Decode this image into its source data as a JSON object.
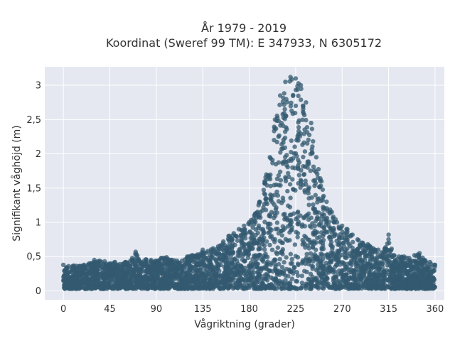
{
  "chart_data": {
    "type": "scatter",
    "title": [
      "År 1979 - 2019",
      "Koordinat (Sweref 99 TM): E 347933, N 6305172"
    ],
    "xlabel": "Vågriktning (grader)",
    "ylabel": "Signifikant våghöjd (m)",
    "xlim": [
      -18,
      369
    ],
    "ylim": [
      -0.13,
      3.27
    ],
    "xticks": [
      0,
      45,
      90,
      135,
      180,
      225,
      270,
      315,
      360
    ],
    "xtick_labels": [
      "0",
      "45",
      "90",
      "135",
      "180",
      "225",
      "270",
      "315",
      "360"
    ],
    "yticks": [
      0,
      0.5,
      1,
      1.5,
      2,
      2.5,
      3
    ],
    "ytick_labels": [
      "0",
      "0,5",
      "1",
      "1,5",
      "2",
      "2,5",
      "3"
    ],
    "grid": true,
    "legend": "none",
    "colors": {
      "marker": "#335a70",
      "plot_background": "#e5e8f0",
      "grid": "#ffffff"
    },
    "series": [
      {
        "points_description_note": "",
        "x": [
          0,
          5,
          10,
          15,
          20,
          25,
          30,
          35,
          40,
          45,
          50,
          55,
          60,
          65,
          70,
          75,
          80,
          85,
          90,
          95,
          100,
          105,
          110,
          115,
          120,
          125,
          130,
          135,
          140,
          145,
          150,
          155,
          160,
          165,
          170,
          175,
          180,
          185,
          190,
          195,
          200,
          205,
          210,
          215,
          220,
          225,
          230,
          235,
          240,
          245,
          250,
          255,
          260,
          265,
          270,
          275,
          280,
          285,
          290,
          295,
          300,
          305,
          310,
          315,
          320,
          325,
          330,
          335,
          340,
          345,
          350,
          355,
          360
        ],
        "y_max": [
          0.38,
          0.36,
          0.37,
          0.36,
          0.38,
          0.4,
          0.45,
          0.44,
          0.43,
          0.4,
          0.42,
          0.39,
          0.42,
          0.44,
          0.57,
          0.42,
          0.46,
          0.45,
          0.44,
          0.48,
          0.49,
          0.45,
          0.44,
          0.44,
          0.5,
          0.52,
          0.53,
          0.6,
          0.58,
          0.62,
          0.65,
          0.72,
          0.8,
          0.84,
          0.9,
          0.95,
          1.0,
          1.1,
          1.3,
          1.6,
          1.95,
          2.5,
          2.85,
          3.05,
          3.12,
          3.1,
          3.0,
          2.75,
          2.45,
          1.95,
          1.6,
          1.3,
          1.15,
          1.0,
          0.95,
          0.9,
          0.82,
          0.75,
          0.7,
          0.68,
          0.62,
          0.6,
          0.55,
          0.82,
          0.52,
          0.5,
          0.5,
          0.48,
          0.52,
          0.55,
          0.45,
          0.42,
          0.38
        ]
      }
    ]
  }
}
